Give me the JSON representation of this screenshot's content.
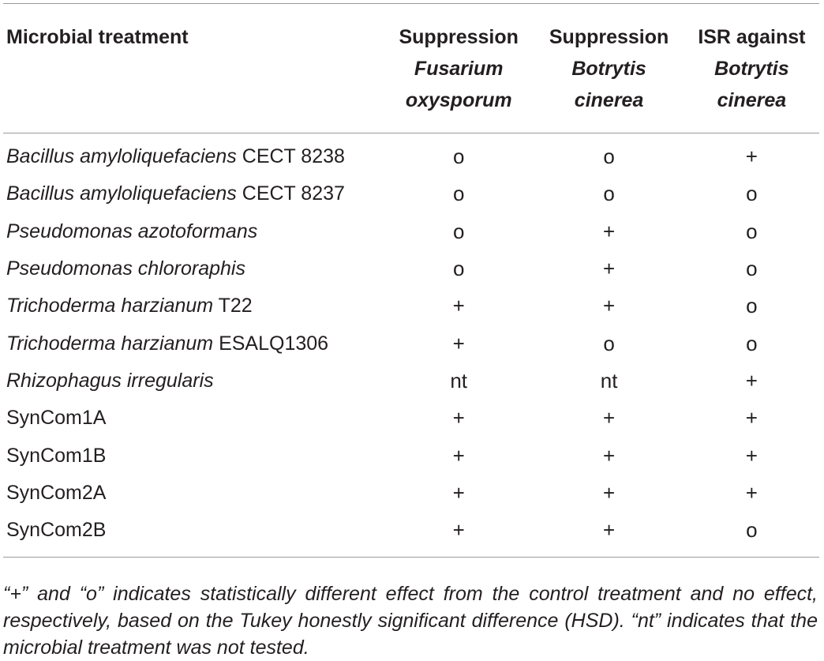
{
  "header": {
    "col1": "Microbial treatment",
    "col2": {
      "line1": "Suppression",
      "line2": "Fusarium",
      "line3": "oxysporum"
    },
    "col3": {
      "line1": "Suppression",
      "line2": "Botrytis",
      "line3": "cinerea"
    },
    "col4": {
      "line1": "ISR against",
      "line2": "Botrytis",
      "line3": "cinerea"
    }
  },
  "rows": [
    {
      "italic": "Bacillus amyloliquefaciens",
      "plain": " CECT 8238",
      "fus": "o",
      "bot": "o",
      "isr": "+"
    },
    {
      "italic": "Bacillus amyloliquefaciens",
      "plain": " CECT 8237",
      "fus": "o",
      "bot": "o",
      "isr": "o"
    },
    {
      "italic": "Pseudomonas azotoformans",
      "plain": "",
      "fus": "o",
      "bot": "+",
      "isr": "o"
    },
    {
      "italic": "Pseudomonas chlororaphis",
      "plain": "",
      "fus": "o",
      "bot": "+",
      "isr": "o"
    },
    {
      "italic": "Trichoderma harzianum",
      "plain": " T22",
      "fus": "+",
      "bot": "+",
      "isr": "o"
    },
    {
      "italic": "Trichoderma harzianum",
      "plain": " ESALQ1306",
      "fus": "+",
      "bot": "o",
      "isr": "o"
    },
    {
      "italic": "Rhizophagus irregularis",
      "plain": "",
      "fus": "nt",
      "bot": "nt",
      "isr": "+"
    },
    {
      "italic": "",
      "plain": "SynCom1A",
      "fus": "+",
      "bot": "+",
      "isr": "+"
    },
    {
      "italic": "",
      "plain": "SynCom1B",
      "fus": "+",
      "bot": "+",
      "isr": "+"
    },
    {
      "italic": "",
      "plain": "SynCom2A",
      "fus": "+",
      "bot": "+",
      "isr": "+"
    },
    {
      "italic": "",
      "plain": "SynCom2B",
      "fus": "+",
      "bot": "+",
      "isr": "o"
    }
  ],
  "footnote": "“+” and “o” indicates statistically different effect from the control treatment and no effect, respectively, based on the Tukey honestly significant difference (HSD). “nt” indicates that the microbial treatment was not tested."
}
